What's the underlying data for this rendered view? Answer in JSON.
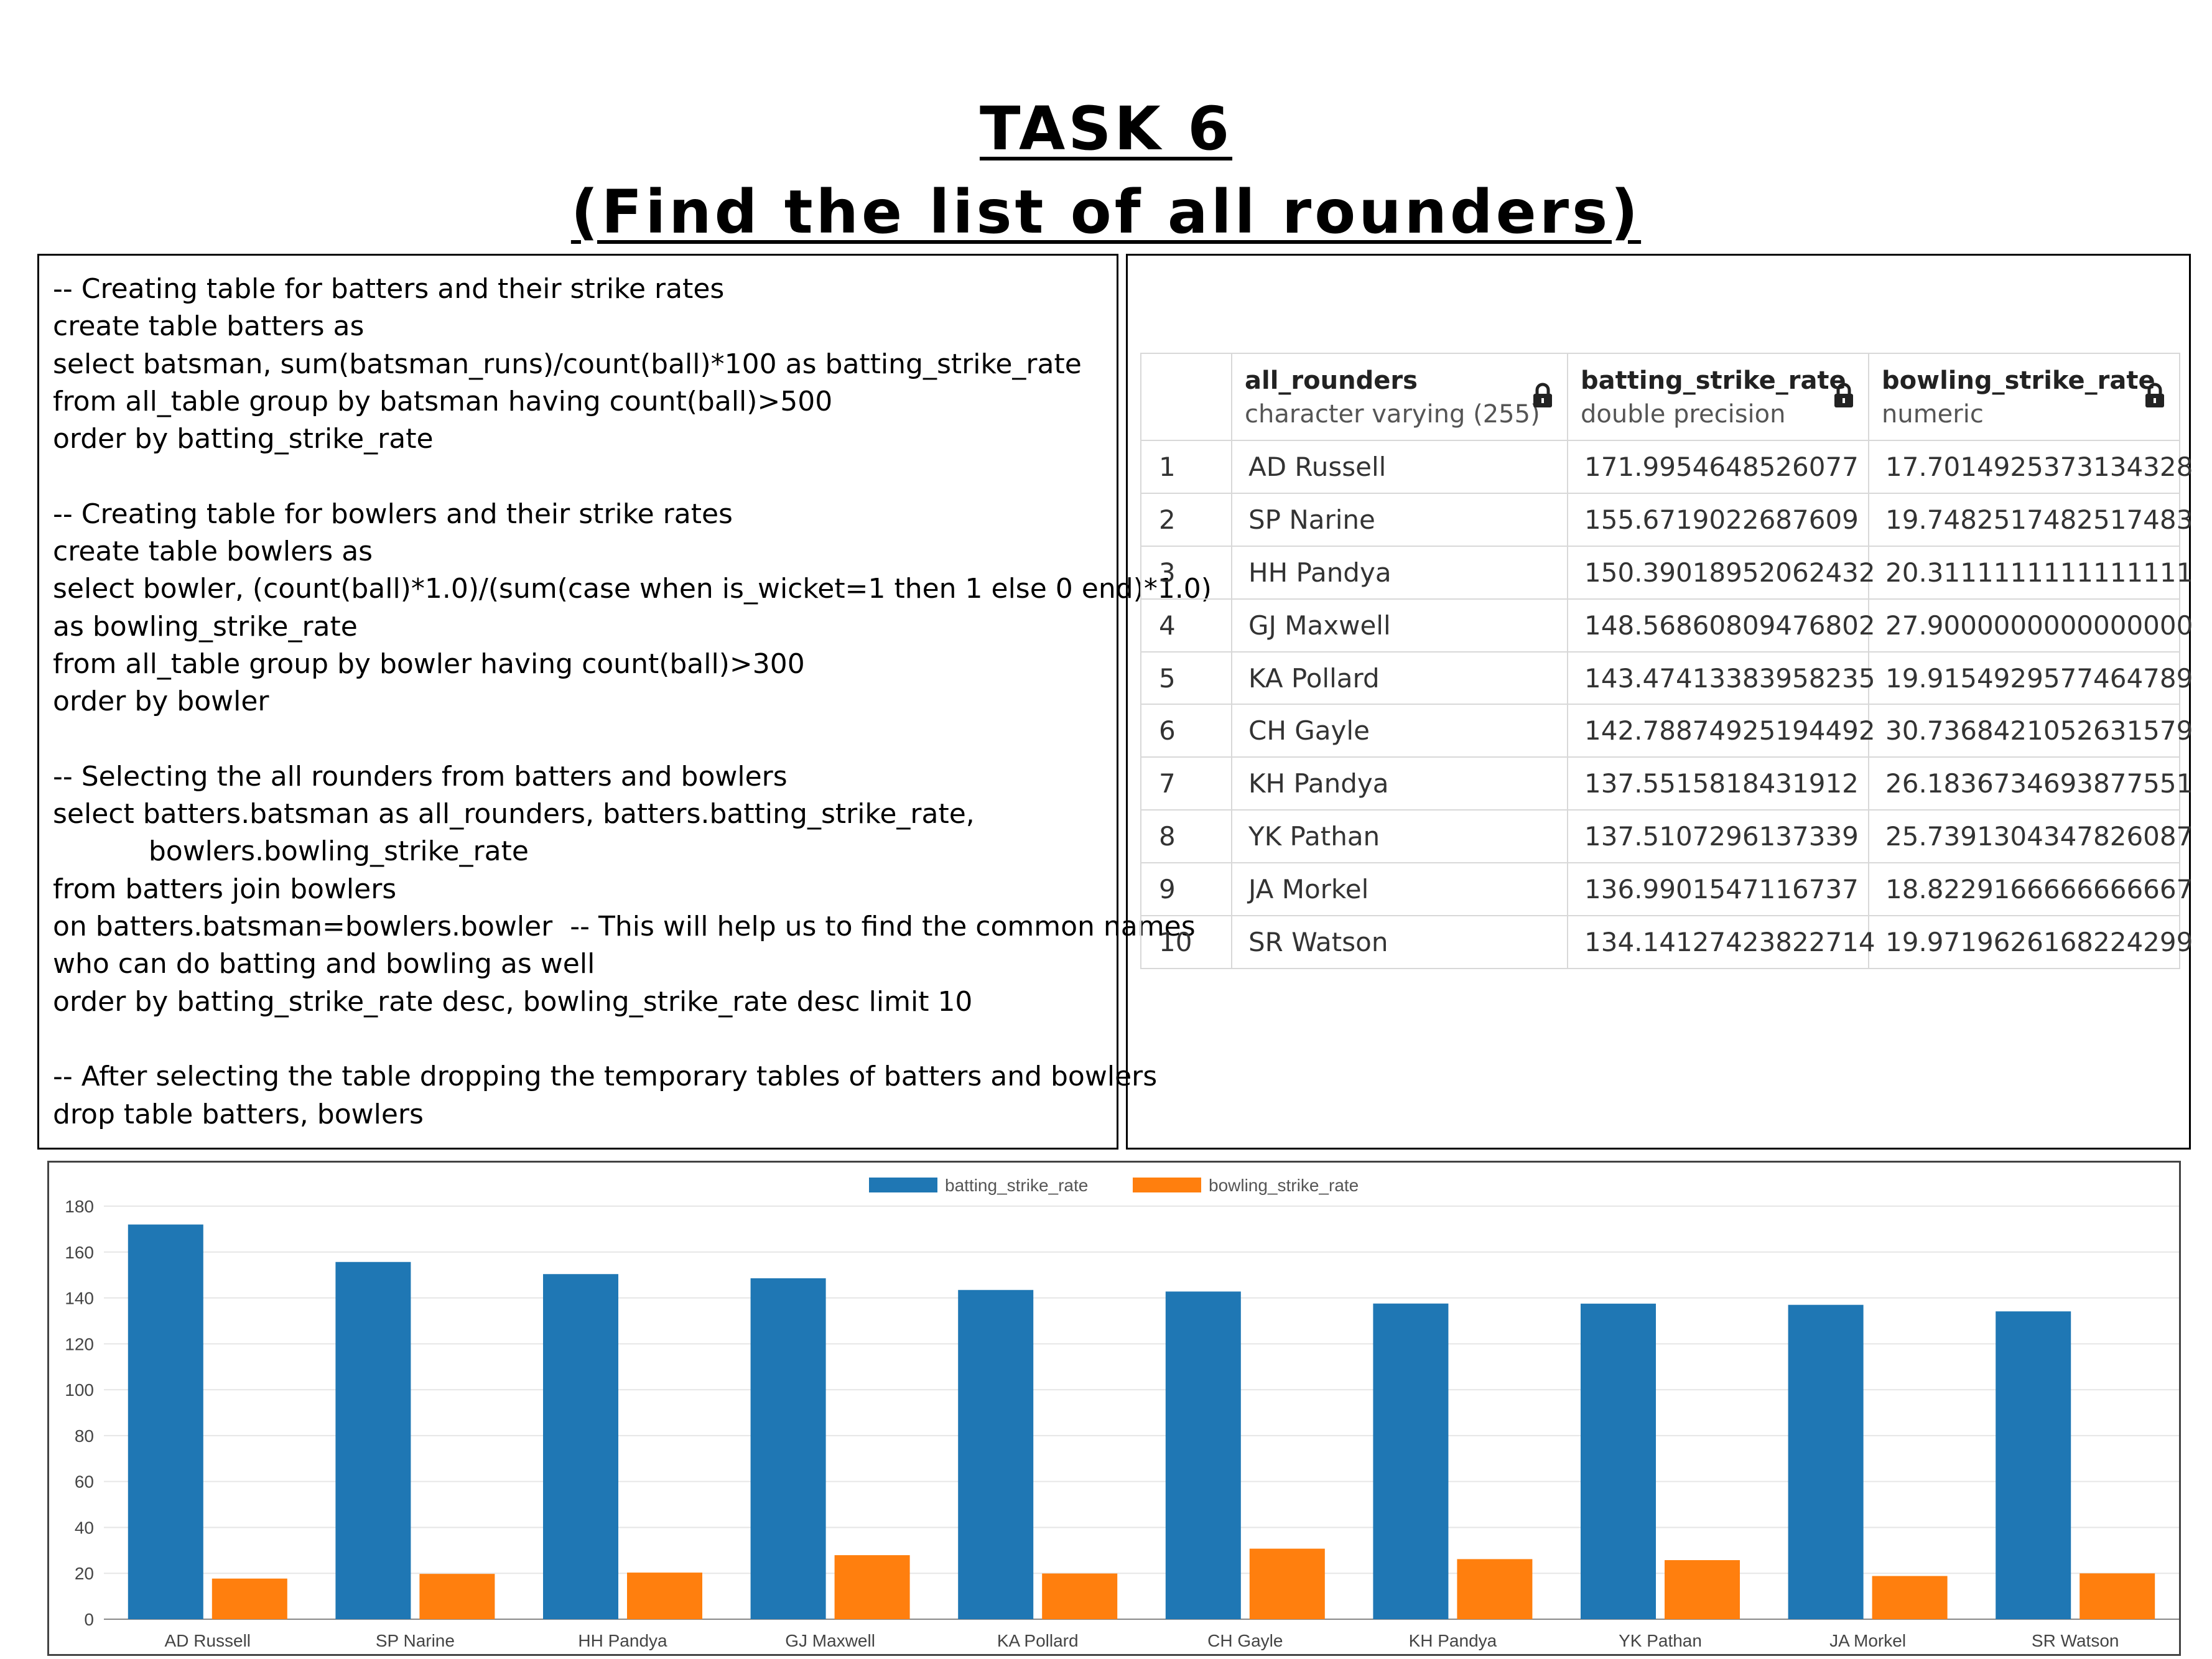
{
  "title": {
    "line1": "TASK 6",
    "line2": "(Find the list of all rounders)"
  },
  "code": [
    "-- Creating table for batters and their strike rates",
    "create table batters as",
    "select batsman, sum(batsman_runs)/count(ball)*100 as batting_strike_rate",
    "from all_table group by batsman having count(ball)>500",
    "order by batting_strike_rate",
    "",
    "-- Creating table for bowlers and their strike rates",
    "create table bowlers as",
    "select bowler, (count(ball)*1.0)/(sum(case when is_wicket=1 then 1 else 0 end)*1.0)",
    "as bowling_strike_rate",
    "from all_table group by bowler having count(ball)>300",
    "order by bowler",
    "",
    "-- Selecting the all rounders from batters and bowlers",
    "select batters.batsman as all_rounders, batters.batting_strike_rate,",
    "           bowlers.bowling_strike_rate",
    "from batters join bowlers",
    "on batters.batsman=bowlers.bowler  -- This will help us to find the common names",
    "who can do batting and bowling as well",
    "order by batting_strike_rate desc, bowling_strike_rate desc limit 10",
    "",
    "-- After selecting the table dropping the temporary tables of batters and bowlers",
    "drop table batters, bowlers"
  ],
  "table": {
    "columns": [
      {
        "name": "all_rounders",
        "type": "character varying (255)",
        "lock_icon": "lock-icon"
      },
      {
        "name": "batting_strike_rate",
        "type": "double precision",
        "lock_icon": "lock-icon"
      },
      {
        "name": "bowling_strike_rate",
        "type": "numeric",
        "lock_icon": "lock-icon"
      }
    ],
    "rows": [
      {
        "n": "1",
        "name": "AD Russell",
        "bat": "171.9954648526077",
        "bowl": "17.7014925373134328"
      },
      {
        "n": "2",
        "name": "SP Narine",
        "bat": "155.6719022687609",
        "bowl": "19.7482517482517483"
      },
      {
        "n": "3",
        "name": "HH Pandya",
        "bat": "150.39018952062432",
        "bowl": "20.3111111111111111"
      },
      {
        "n": "4",
        "name": "GJ Maxwell",
        "bat": "148.56860809476802",
        "bowl": "27.9000000000000000"
      },
      {
        "n": "5",
        "name": "KA Pollard",
        "bat": "143.47413383958235",
        "bowl": "19.9154929577464789"
      },
      {
        "n": "6",
        "name": "CH Gayle",
        "bat": "142.78874925194492",
        "bowl": "30.7368421052631579"
      },
      {
        "n": "7",
        "name": "KH Pandya",
        "bat": "137.5515818431912",
        "bowl": "26.1836734693877551"
      },
      {
        "n": "8",
        "name": "YK Pathan",
        "bat": "137.5107296137339",
        "bowl": "25.7391304347826087"
      },
      {
        "n": "9",
        "name": "JA Morkel",
        "bat": "136.9901547116737",
        "bowl": "18.8229166666666667"
      },
      {
        "n": "10",
        "name": "SR Watson",
        "bat": "134.14127423822714",
        "bowl": "19.9719626168224299"
      }
    ]
  },
  "chart_data": {
    "type": "bar",
    "categories": [
      "AD Russell",
      "SP Narine",
      "HH Pandya",
      "GJ Maxwell",
      "KA Pollard",
      "CH Gayle",
      "KH Pandya",
      "YK Pathan",
      "JA Morkel",
      "SR Watson"
    ],
    "series": [
      {
        "name": "batting_strike_rate",
        "color": "#1f77b4",
        "values": [
          171.9954648526077,
          155.6719022687609,
          150.39018952062432,
          148.56860809476802,
          143.47413383958235,
          142.78874925194492,
          137.5515818431912,
          137.5107296137339,
          136.9901547116737,
          134.14127423822714
        ]
      },
      {
        "name": "bowling_strike_rate",
        "color": "#ff7f0e",
        "values": [
          17.70149253731343,
          19.748251748251747,
          20.31111111111111,
          27.9,
          19.91549295774648,
          30.736842105263158,
          26.183673469387756,
          25.73913043478261,
          18.822916666666668,
          19.97196261682243
        ]
      }
    ],
    "yticks": [
      0,
      20,
      40,
      60,
      80,
      100,
      120,
      140,
      160,
      180
    ],
    "ylim": [
      0,
      180
    ],
    "legend": "top-center",
    "grid": true
  }
}
